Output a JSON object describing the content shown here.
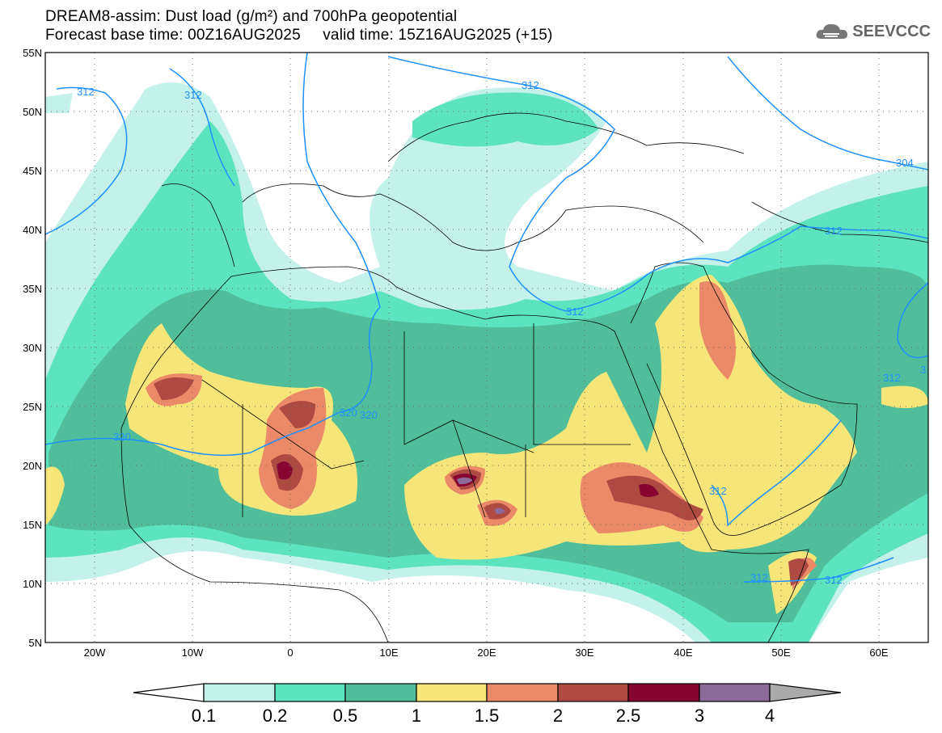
{
  "header": {
    "title": "DREAM8-assim: Dust load (g/m²) and 700hPa geopotential",
    "subtitle": "Forecast base time: 00Z16AUG2025     valid time: 15Z16AUG2025 (+15)",
    "logo_text": "SEEVCCC"
  },
  "map": {
    "lon_labels": [
      "20W",
      "10W",
      "0",
      "10E",
      "20E",
      "30E",
      "40E",
      "50E",
      "60E"
    ],
    "lat_labels": [
      "55N",
      "50N",
      "45N",
      "40N",
      "35N",
      "30N",
      "25N",
      "20N",
      "15N",
      "10N",
      "5N"
    ],
    "contour_labels": [
      "312",
      "320",
      "312",
      "312",
      "320",
      "320",
      "312",
      "304",
      "312",
      "312",
      "312",
      "312",
      "312",
      "3"
    ],
    "contour_color": "#1e90ff"
  },
  "colorbar": {
    "labels": [
      "0.1",
      "0.2",
      "0.5",
      "1",
      "1.5",
      "2",
      "2.5",
      "3",
      "4"
    ],
    "colors": [
      "#c4f2ea",
      "#5de4be",
      "#50be9a",
      "#f6e67a",
      "#ea8a68",
      "#ad4b42",
      "#870530",
      "#8c6b9a"
    ],
    "over_color": "#aaaaaa",
    "under_color": "#ffffff"
  }
}
